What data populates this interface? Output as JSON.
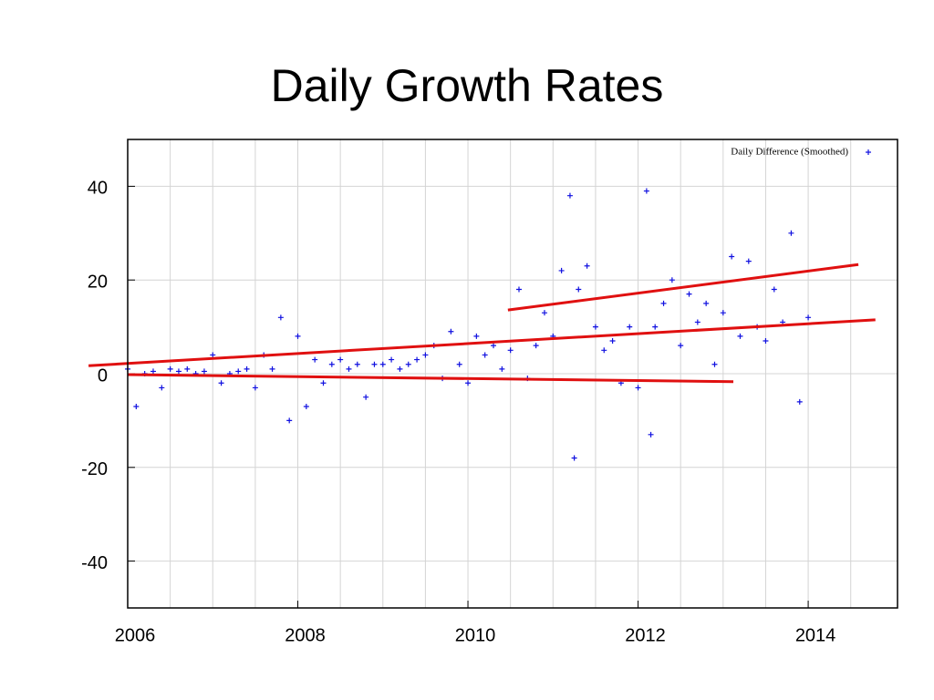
{
  "chart_data": {
    "type": "scatter",
    "title": "Daily Growth Rates",
    "series": [
      {
        "name": "Daily Difference (Smoothed)",
        "color": "#1010e0",
        "marker": "+",
        "x": [
          2006.0,
          2006.1,
          2006.2,
          2006.3,
          2006.4,
          2006.5,
          2006.6,
          2006.7,
          2006.8,
          2006.9,
          2007.0,
          2007.1,
          2007.2,
          2007.3,
          2007.4,
          2007.5,
          2007.6,
          2007.7,
          2007.8,
          2007.9,
          2008.0,
          2008.1,
          2008.2,
          2008.3,
          2008.4,
          2008.5,
          2008.6,
          2008.7,
          2008.8,
          2008.9,
          2009.0,
          2009.1,
          2009.2,
          2009.3,
          2009.4,
          2009.5,
          2009.6,
          2009.7,
          2009.8,
          2009.9,
          2010.0,
          2010.1,
          2010.2,
          2010.3,
          2010.4,
          2010.5,
          2010.6,
          2010.7,
          2010.8,
          2010.9,
          2011.0,
          2011.1,
          2011.2,
          2011.25,
          2011.3,
          2011.4,
          2011.5,
          2011.6,
          2011.7,
          2011.8,
          2011.9,
          2012.0,
          2012.1,
          2012.15,
          2012.2,
          2012.3,
          2012.4,
          2012.5,
          2012.6,
          2012.7,
          2012.8,
          2012.9,
          2013.0,
          2013.1,
          2013.2,
          2013.3,
          2013.4,
          2013.5,
          2013.6,
          2013.7,
          2013.8,
          2013.9,
          2014.0
        ],
        "values": [
          1,
          -7,
          0,
          0.5,
          -3,
          1,
          0.5,
          1,
          0,
          0.5,
          4,
          -2,
          0,
          0.5,
          1,
          -3,
          4,
          1,
          12,
          -10,
          8,
          -7,
          3,
          -2,
          2,
          3,
          1,
          2,
          -5,
          2,
          2,
          3,
          1,
          2,
          3,
          4,
          6,
          -1,
          9,
          2,
          -2,
          8,
          4,
          6,
          1,
          5,
          18,
          -1,
          6,
          13,
          8,
          22,
          38,
          -18,
          18,
          23,
          10,
          5,
          7,
          -2,
          10,
          -3,
          39,
          -13,
          10,
          15,
          20,
          6,
          17,
          11,
          15,
          2,
          13,
          25,
          8,
          24,
          10,
          7,
          18,
          11,
          30,
          -6,
          12
        ]
      }
    ],
    "trend_lines": {
      "color": "#e01010",
      "lines": [
        {
          "x": [
            2005.54,
            2014.79
          ],
          "y": [
            1.7,
            11.5
          ]
        },
        {
          "x": [
            2010.47,
            2014.59
          ],
          "y": [
            13.6,
            23.3
          ]
        },
        {
          "x": [
            2006.0,
            2013.12
          ],
          "y": [
            -0.2,
            -1.7
          ]
        }
      ]
    },
    "xlim": [
      2006,
      2015.05
    ],
    "ylim": [
      -50,
      50
    ],
    "xticks": [
      2006,
      2008,
      2010,
      2012,
      2014
    ],
    "x_minor_ticks": [
      2006.5,
      2007,
      2007.5,
      2008.5,
      2009,
      2009.5,
      2010.5,
      2011,
      2011.5,
      2012.5,
      2013,
      2013.5,
      2014.5
    ],
    "yticks": [
      -40,
      -20,
      0,
      20,
      40
    ],
    "grid": true,
    "legend": "upper right"
  }
}
